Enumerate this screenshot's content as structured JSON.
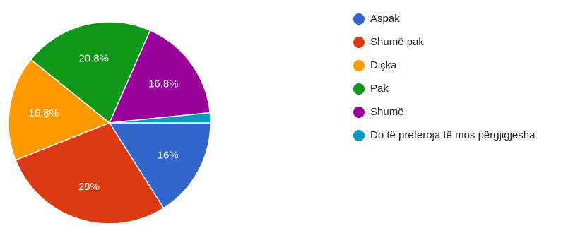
{
  "chart_data": {
    "type": "pie",
    "start_angle_deg": 90,
    "direction": "clockwise",
    "slices": [
      {
        "label": "Aspak",
        "value": 16,
        "display": "16%",
        "color": "#3366cc"
      },
      {
        "label": "Shumë pak",
        "value": 28,
        "display": "28%",
        "color": "#dc3912"
      },
      {
        "label": "Diçka",
        "value": 16.8,
        "display": "16.8%",
        "color": "#ff9900"
      },
      {
        "label": "Pak",
        "value": 20.8,
        "display": "20.8%",
        "color": "#109618"
      },
      {
        "label": "Shumë",
        "value": 16.8,
        "display": "16.8%",
        "color": "#990099"
      },
      {
        "label": "Do të preferoja të mos përgjigjesha",
        "value": 1.6,
        "display": "",
        "color": "#0099c6"
      }
    ],
    "legend_position": "right"
  }
}
